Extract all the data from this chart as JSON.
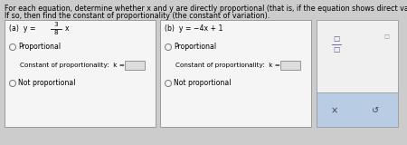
{
  "title_line1": "For each equation, determine whether x and y are directly proportional (that is, if the equation shows direct variation).",
  "title_line2": "If so, then find the constant of proportionality (the constant of variation).",
  "part_a_label": "(a)  y =",
  "part_a_num": "3",
  "part_a_den": "8",
  "part_a_var": "x",
  "part_b_label": "(b)  y = −4x + 1",
  "proportional_text": "Proportional",
  "not_proportional_text": "Not proportional",
  "constant_text": "Constant of proportionality:  k =",
  "bg_color": "#cccccc",
  "box_color": "#f5f5f5",
  "panel_top_color": "#e8e8e8",
  "panel_bot_color": "#b8cce4",
  "title_fontsize": 5.8,
  "body_fontsize": 5.6,
  "small_fontsize": 5.2
}
